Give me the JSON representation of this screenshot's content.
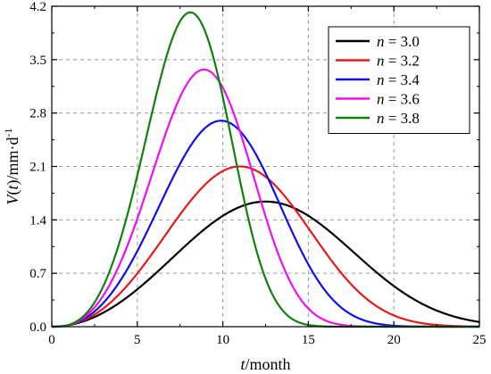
{
  "chart_data": {
    "type": "line",
    "xlabel": "t/month",
    "xlabel_italic": "t",
    "xlabel_rest": "/month",
    "ylabel": "V(t)/mm·d-1",
    "ylabel_parts": {
      "v": "V",
      "t": "t",
      "unit": "/mm·d",
      "sup": "-1"
    },
    "xlim": [
      0,
      25
    ],
    "ylim": [
      0,
      4.2
    ],
    "xticks": [
      0,
      5,
      10,
      15,
      20,
      25
    ],
    "yticks": [
      "0.0",
      "0.7",
      "1.4",
      "2.1",
      "2.8",
      "3.5",
      "4.2"
    ],
    "grid": true,
    "legend_position": "top-right",
    "series": [
      {
        "name": "n = 3.0",
        "label_var": "n",
        "label_val": "= 3.0",
        "n": 3.0,
        "color": "#000000",
        "peak_x": 12.5,
        "peak_y": 1.64
      },
      {
        "name": "n = 3.2",
        "label_var": "n",
        "label_val": "= 3.2",
        "n": 3.2,
        "color": "#e41a1a",
        "peak_x": 11.0,
        "peak_y": 2.1
      },
      {
        "name": "n = 3.4",
        "label_var": "n",
        "label_val": "= 3.4",
        "n": 3.4,
        "color": "#1010e6",
        "peak_x": 9.9,
        "peak_y": 2.7
      },
      {
        "name": "n = 3.6",
        "label_var": "n",
        "label_val": "= 3.6",
        "n": 3.6,
        "color": "#ee10ee",
        "peak_x": 8.9,
        "peak_y": 3.37
      },
      {
        "name": "n = 3.8",
        "label_var": "n",
        "label_val": "= 3.8",
        "n": 3.8,
        "color": "#108010",
        "peak_x": 8.1,
        "peak_y": 4.12
      }
    ]
  }
}
